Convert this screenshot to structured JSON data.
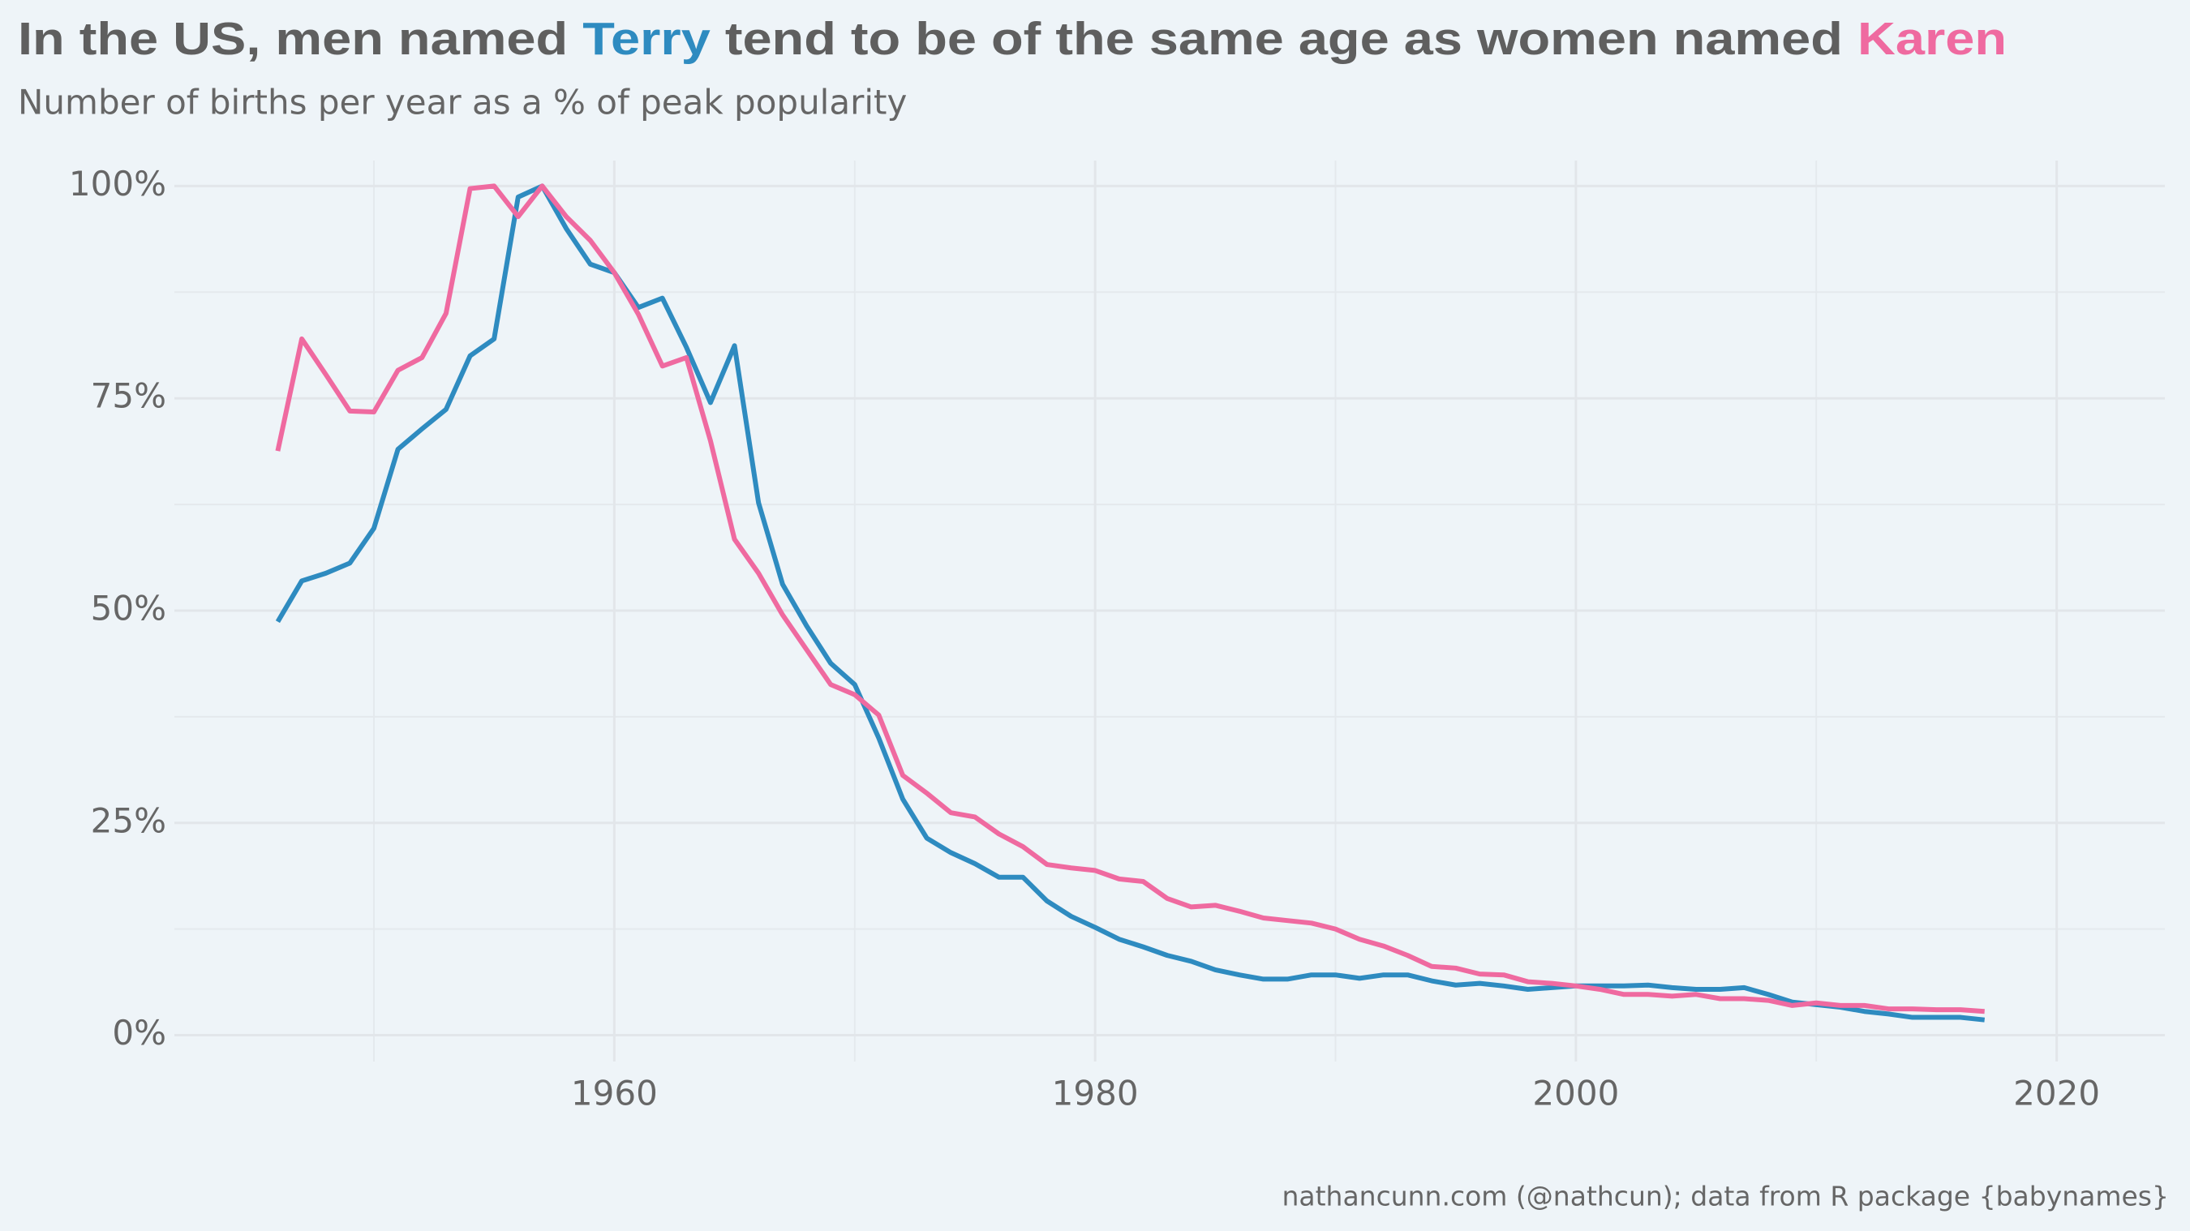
{
  "chart_data": {
    "type": "line",
    "title_parts": [
      "In the US, men named ",
      "Terry",
      " tend to be of the same age as women named ",
      "Karen"
    ],
    "subtitle": "Number of births per year as a % of peak popularity",
    "caption": "nathancunn.com (@nathcun); data from R package {babynames}",
    "x": [
      1946,
      1947,
      1948,
      1949,
      1950,
      1951,
      1952,
      1953,
      1954,
      1955,
      1956,
      1957,
      1958,
      1959,
      1960,
      1961,
      1962,
      1963,
      1964,
      1965,
      1966,
      1967,
      1968,
      1969,
      1970,
      1971,
      1972,
      1973,
      1974,
      1975,
      1976,
      1977,
      1978,
      1979,
      1980,
      1981,
      1982,
      1983,
      1984,
      1985,
      1986,
      1987,
      1988,
      1989,
      1990,
      1991,
      1992,
      1993,
      1994,
      1995,
      1996,
      1997,
      1998,
      1999,
      2000,
      2001,
      2002,
      2003,
      2004,
      2005,
      2006,
      2007,
      2008,
      2009,
      2010,
      2011,
      2012,
      2013,
      2014,
      2015,
      2016,
      2017
    ],
    "series": [
      {
        "name": "Terry",
        "color": "#2e8bc0",
        "values": [
          48.7,
          53.5,
          54.4,
          55.6,
          59.7,
          69,
          71.4,
          73.7,
          80,
          82,
          98.7,
          100,
          95,
          90.8,
          89.8,
          85.7,
          86.8,
          81,
          74.5,
          81.2,
          62.7,
          53.1,
          48.2,
          43.8,
          41.3,
          35,
          27.8,
          23.2,
          21.5,
          20.2,
          18.6,
          18.6,
          15.8,
          14,
          12.7,
          11.3,
          10.4,
          9.4,
          8.7,
          7.7,
          7.1,
          6.6,
          6.6,
          7.1,
          7.1,
          6.7,
          7.1,
          7.1,
          6.4,
          5.9,
          6.1,
          5.8,
          5.4,
          5.6,
          5.8,
          5.8,
          5.8,
          5.9,
          5.6,
          5.4,
          5.4,
          5.6,
          4.8,
          3.9,
          3.6,
          3.3,
          2.8,
          2.5,
          2.1,
          2.1,
          2.1,
          1.8
        ]
      },
      {
        "name": "Karen",
        "color": "#ef6aa0",
        "values": [
          68.8,
          82,
          77.8,
          73.5,
          73.4,
          78.3,
          79.8,
          85,
          99.7,
          100,
          96.4,
          100,
          96.4,
          93.6,
          89.8,
          84.9,
          78.8,
          79.8,
          70,
          58.4,
          54.4,
          49.5,
          45.4,
          41.3,
          40.1,
          37.7,
          30.6,
          28.5,
          26.2,
          25.7,
          23.7,
          22.2,
          20.1,
          19.7,
          19.4,
          18.4,
          18.1,
          16.1,
          15.1,
          15.3,
          14.6,
          13.8,
          13.5,
          13.2,
          12.5,
          11.3,
          10.5,
          9.4,
          8.1,
          7.9,
          7.2,
          7.1,
          6.3,
          6.1,
          5.8,
          5.4,
          4.8,
          4.8,
          4.6,
          4.8,
          4.3,
          4.3,
          4.1,
          3.5,
          3.8,
          3.5,
          3.5,
          3.1,
          3.1,
          3.0,
          3.0,
          2.8
        ]
      }
    ],
    "xlim": [
      1941.7,
      2024.5
    ],
    "xticks": [
      1960,
      1980,
      2000,
      2020
    ],
    "ylim": [
      -3.1,
      103
    ],
    "yticks": [
      {
        "value": 0,
        "label": "0%"
      },
      {
        "value": 25,
        "label": "25%"
      },
      {
        "value": 50,
        "label": "50%"
      },
      {
        "value": 75,
        "label": "75%"
      },
      {
        "value": 100,
        "label": "100%"
      }
    ],
    "grid": true,
    "minor_grid": true
  }
}
